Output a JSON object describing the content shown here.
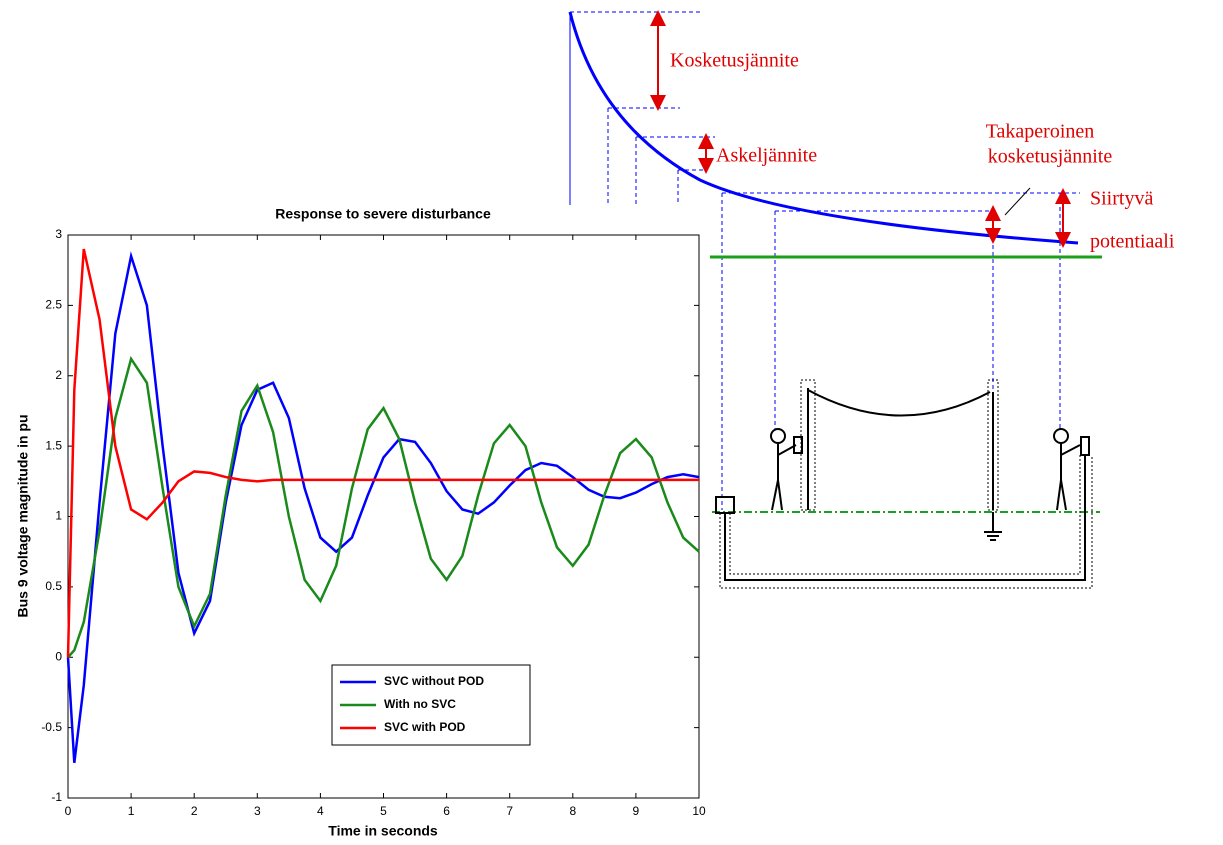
{
  "chart_data": {
    "type": "line",
    "title": "Response to severe disturbance",
    "x_label": "Time in seconds",
    "y_label": "Bus 9 voltage magnitude in pu",
    "x": [
      0,
      0.1,
      0.25,
      0.5,
      0.75,
      1,
      1.25,
      1.5,
      1.75,
      2,
      2.25,
      2.5,
      2.75,
      3,
      3.25,
      3.5,
      3.75,
      4,
      4.25,
      4.5,
      4.75,
      5,
      5.25,
      5.5,
      5.75,
      6,
      6.25,
      6.5,
      6.75,
      7,
      7.25,
      7.5,
      7.75,
      8,
      8.25,
      8.5,
      8.75,
      9,
      9.25,
      9.5,
      9.75,
      10
    ],
    "series": [
      {
        "name": "SVC without POD",
        "color": "#0000ff",
        "values": [
          0,
          -0.75,
          -0.2,
          1.1,
          2.3,
          2.85,
          2.5,
          1.5,
          0.6,
          0.17,
          0.4,
          1.1,
          1.65,
          1.9,
          1.95,
          1.7,
          1.2,
          0.85,
          0.75,
          0.85,
          1.15,
          1.42,
          1.55,
          1.53,
          1.38,
          1.18,
          1.05,
          1.02,
          1.1,
          1.22,
          1.33,
          1.38,
          1.36,
          1.28,
          1.19,
          1.14,
          1.13,
          1.17,
          1.23,
          1.28,
          1.3,
          1.28
        ]
      },
      {
        "name": "With no SVC",
        "color": "#1a8a1a",
        "values": [
          0,
          0.05,
          0.25,
          0.9,
          1.7,
          2.12,
          1.95,
          1.2,
          0.5,
          0.22,
          0.45,
          1.15,
          1.75,
          1.93,
          1.6,
          1.0,
          0.55,
          0.4,
          0.65,
          1.2,
          1.62,
          1.77,
          1.55,
          1.1,
          0.7,
          0.55,
          0.72,
          1.15,
          1.52,
          1.65,
          1.5,
          1.1,
          0.78,
          0.65,
          0.8,
          1.15,
          1.45,
          1.55,
          1.42,
          1.1,
          0.85,
          0.75
        ]
      },
      {
        "name": "SVC with POD",
        "color": "#ff0000",
        "values": [
          0,
          1.9,
          2.9,
          2.4,
          1.5,
          1.05,
          0.98,
          1.1,
          1.25,
          1.32,
          1.31,
          1.28,
          1.26,
          1.25,
          1.26,
          1.26,
          1.26,
          1.26,
          1.26,
          1.26,
          1.26,
          1.26,
          1.26,
          1.26,
          1.26,
          1.26,
          1.26,
          1.26,
          1.26,
          1.26,
          1.26,
          1.26,
          1.26,
          1.26,
          1.26,
          1.26,
          1.26,
          1.26,
          1.26,
          1.26,
          1.26,
          1.26
        ]
      }
    ],
    "xlim": [
      0,
      10
    ],
    "xticks": [
      0,
      1,
      2,
      3,
      4,
      5,
      6,
      7,
      8,
      9,
      10
    ],
    "ylim": [
      -1,
      3
    ],
    "yticks": [
      -1,
      -0.5,
      0,
      0.5,
      1,
      1.5,
      2,
      2.5,
      3
    ],
    "grid": false,
    "legend": "lower center"
  },
  "diagram": {
    "labels": [
      "Kosketusjännite",
      "Askeljännite",
      "Takaperoinen",
      "kosketusjännite",
      "Siirtyvä",
      "potentiaali"
    ]
  }
}
